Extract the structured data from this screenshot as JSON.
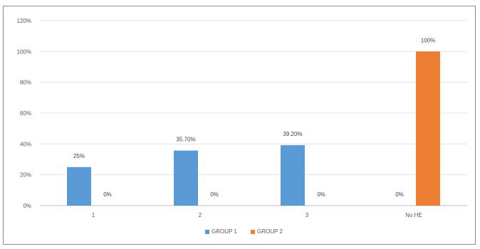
{
  "chart_data": {
    "type": "bar",
    "categories": [
      "1",
      "2",
      "3",
      "No HE"
    ],
    "series": [
      {
        "name": "GROUP 1",
        "color": "#5b9bd5",
        "values": [
          25,
          35.7,
          39.2,
          0
        ],
        "labels": [
          "25%",
          "35.70%",
          "39.20%",
          "0%"
        ]
      },
      {
        "name": "GROUP 2",
        "color": "#ed7d31",
        "values": [
          0,
          0,
          0,
          100
        ],
        "labels": [
          "0%",
          "0%",
          "0%",
          "100%"
        ]
      }
    ],
    "ylim": [
      0,
      120
    ],
    "yticks": [
      0,
      20,
      40,
      60,
      80,
      100,
      120
    ],
    "ytick_labels": [
      "0%",
      "20%",
      "40%",
      "60%",
      "80%",
      "100%",
      "120%"
    ],
    "grid": true,
    "legend": "bottom"
  }
}
